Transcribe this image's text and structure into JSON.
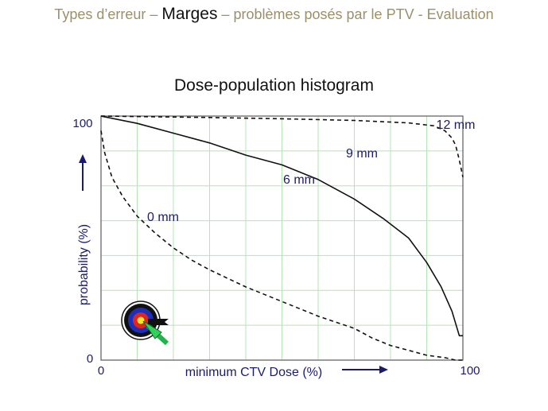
{
  "header": {
    "prefix": "Types d’erreur – ",
    "emphasis": "Marges",
    "suffix": " – problèmes posés par le PTV - Evaluation"
  },
  "chart_data": {
    "type": "line",
    "title": "Dose-population histogram",
    "xlabel": "minimum CTV Dose (%)",
    "ylabel": "probability (%)",
    "xlim": [
      0,
      100
    ],
    "ylim": [
      0,
      100
    ],
    "x_ticks": [
      "0",
      "100"
    ],
    "y_ticks": [
      "0",
      "100"
    ],
    "grid": true,
    "grid_color": "#b6e3b6",
    "line_color": "#111111",
    "icons": [
      "target-icon",
      "arrow-icon"
    ],
    "series": [
      {
        "name": "0 mm",
        "style": "dashed",
        "x": [
          0,
          1,
          3,
          6,
          10,
          15,
          20,
          25,
          30,
          40,
          50,
          60,
          70,
          75,
          80,
          85,
          90,
          95,
          98,
          100
        ],
        "y": [
          94,
          85,
          75,
          67,
          59,
          52,
          46,
          41,
          37,
          30,
          24,
          18,
          13,
          9,
          6,
          4,
          2,
          1,
          0,
          0
        ]
      },
      {
        "name": "6 mm",
        "style": "solid",
        "x": [
          0,
          10,
          20,
          30,
          40,
          50,
          60,
          70,
          78,
          85,
          90,
          94,
          97,
          99,
          100
        ],
        "y": [
          100,
          97,
          93,
          89,
          84,
          80,
          74,
          66,
          58,
          50,
          40,
          30,
          20,
          10,
          10
        ]
      },
      {
        "name": "9 mm",
        "style": "solid",
        "x": [],
        "y": []
      },
      {
        "name": "12 mm",
        "style": "dashed",
        "x": [
          0,
          10,
          30,
          50,
          70,
          85,
          92,
          95,
          97,
          98,
          99,
          100
        ],
        "y": [
          100,
          99.8,
          99.4,
          98.9,
          98.2,
          97.2,
          96,
          94,
          91,
          88,
          82,
          75
        ]
      }
    ]
  }
}
